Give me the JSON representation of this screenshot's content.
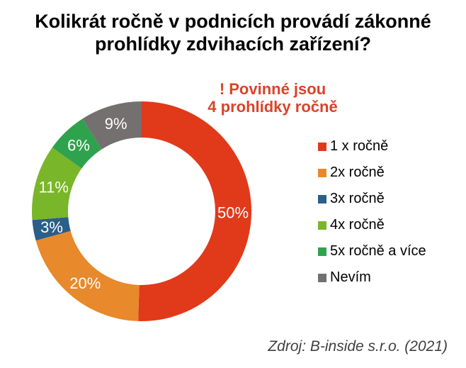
{
  "title": "Kolikrát ročně v podnicích provádí zákonné prohlídky zdvihacích zařízení?",
  "annotation": {
    "text": "! Povinné jsou\n4 prohlídky ročně",
    "color": "#d9432a"
  },
  "source": "Zdroj: B-inside s.r.o. (2021)",
  "chart_data": {
    "type": "pie",
    "subtype": "donut",
    "title": "Kolikrát ročně v podnicích provádí zákonné prohlídky zdvihacích zařízení?",
    "annotation": "! Povinné jsou 4 prohlídky ročně",
    "source": "Zdroj: B-inside s.r.o. (2021)",
    "start_angle_deg": 0,
    "direction": "clockwise",
    "inner_radius_ratio": 0.67,
    "legend_position": "right",
    "data_label_color": "#ffffff",
    "series": [
      {
        "label": "1 x ročně",
        "value": 50,
        "display": "50%",
        "color": "#e03a1b"
      },
      {
        "label": "2x ročně",
        "value": 20,
        "display": "20%",
        "color": "#e8892b"
      },
      {
        "label": "3x ročně",
        "value": 3,
        "display": "3%",
        "color": "#2b5e88"
      },
      {
        "label": "4x ročně",
        "value": 11,
        "display": "11%",
        "color": "#7ab629"
      },
      {
        "label": "5x ročně a více",
        "value": 6,
        "display": "6%",
        "color": "#2fa24d"
      },
      {
        "label": "Nevím",
        "value": 9,
        "display": "9%",
        "color": "#757070"
      }
    ]
  }
}
